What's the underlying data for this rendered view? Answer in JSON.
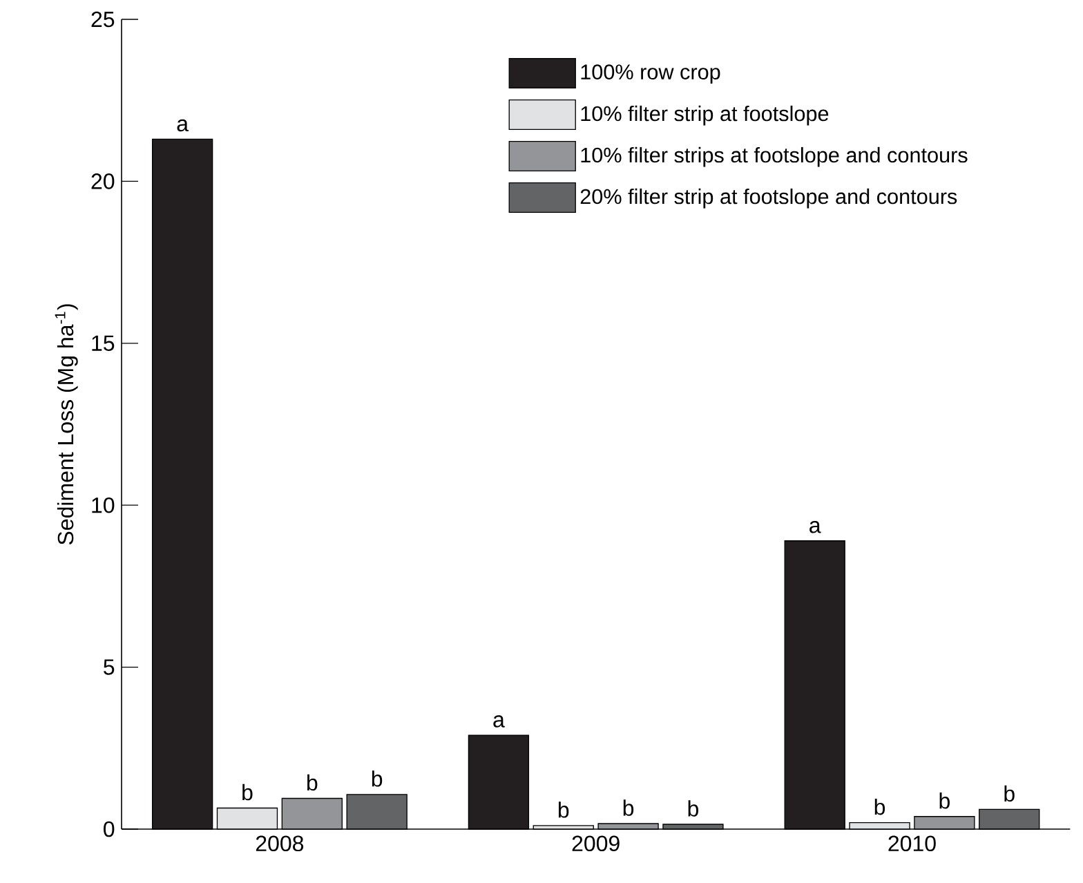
{
  "chart_data": {
    "type": "bar",
    "ylabel": "Sediment Loss (Mg ha$^{-1}$)",
    "categories": [
      "2008",
      "2009",
      "2010"
    ],
    "series": [
      {
        "name": "100% row crop",
        "color": "#231f20",
        "values": [
          21.3,
          2.9,
          8.9
        ],
        "value_labels": [
          "a",
          "a",
          "a"
        ]
      },
      {
        "name": "10% filter strip at footslope",
        "color": "#e1e2e3",
        "values": [
          0.65,
          0.11,
          0.2
        ],
        "value_labels": [
          "b",
          "b",
          "b"
        ]
      },
      {
        "name": "10% filter strips at footslope and contours",
        "color": "#939598",
        "values": [
          0.95,
          0.17,
          0.39
        ],
        "value_labels": [
          "b",
          "b",
          "b"
        ]
      },
      {
        "name": "20% filter strip at footslope and contours",
        "color": "#636466",
        "values": [
          1.07,
          0.15,
          0.61
        ],
        "value_labels": [
          "b",
          "b",
          "b"
        ]
      }
    ],
    "ylim": [
      0,
      25
    ],
    "yticks": [
      0,
      5,
      10,
      15,
      20,
      25
    ],
    "legend": "top right"
  }
}
